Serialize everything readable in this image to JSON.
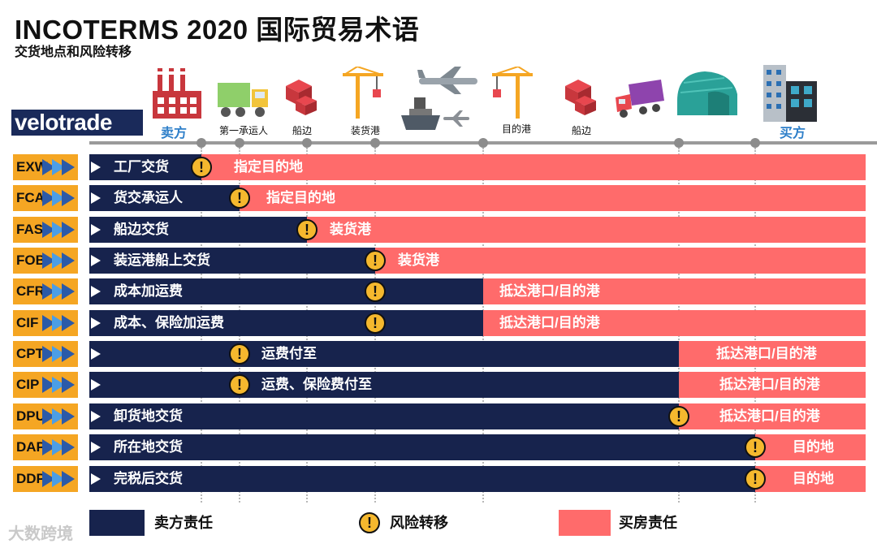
{
  "title": "INCOTERMS 2020 国际贸易术语",
  "subtitle": "交货地点和风险转移",
  "logo": "velotrade",
  "watermark": "大数跨境",
  "stages": {
    "seller": "卖方",
    "carrier": "第一承运人",
    "alongside_ship": "船边",
    "loading_port": "装货港",
    "destination_port": "目的港",
    "ship_side_destination": "船边",
    "buyer": "买方"
  },
  "rows": [
    {
      "code": "EXW",
      "seller_text": "工厂交货",
      "buyer_text": "指定目的地"
    },
    {
      "code": "FCA",
      "seller_text": "货交承运人",
      "buyer_text": "指定目的地"
    },
    {
      "code": "FAS",
      "seller_text": "船边交货",
      "buyer_text": "装货港"
    },
    {
      "code": "FOB",
      "seller_text": "装运港船上交货",
      "buyer_text": "装货港"
    },
    {
      "code": "CFR",
      "seller_text": "成本加运费",
      "buyer_text": "抵达港口/目的港"
    },
    {
      "code": "CIF",
      "seller_text": "成本、保险加运费",
      "buyer_text": "抵达港口/目的港"
    },
    {
      "code": "CPT",
      "seller_text": "运费付至",
      "buyer_text": "抵达港口/目的港"
    },
    {
      "code": "CIP",
      "seller_text": "运费、保险费付至",
      "buyer_text": "抵达港口/目的港"
    },
    {
      "code": "DPU",
      "seller_text": "卸货地交货",
      "buyer_text": "抵达港口/目的港"
    },
    {
      "code": "DAP",
      "seller_text": "所在地交货",
      "buyer_text": "目的地"
    },
    {
      "code": "DDP",
      "seller_text": "完税后交货",
      "buyer_text": "目的地"
    }
  ],
  "legend": {
    "seller": "卖方责任",
    "risk": "风险转移",
    "buyer": "买房责任"
  },
  "colors": {
    "seller": "#17234d",
    "buyer": "#ff6b6b",
    "code": "#f5a623",
    "risk": "#f5b82e"
  }
}
